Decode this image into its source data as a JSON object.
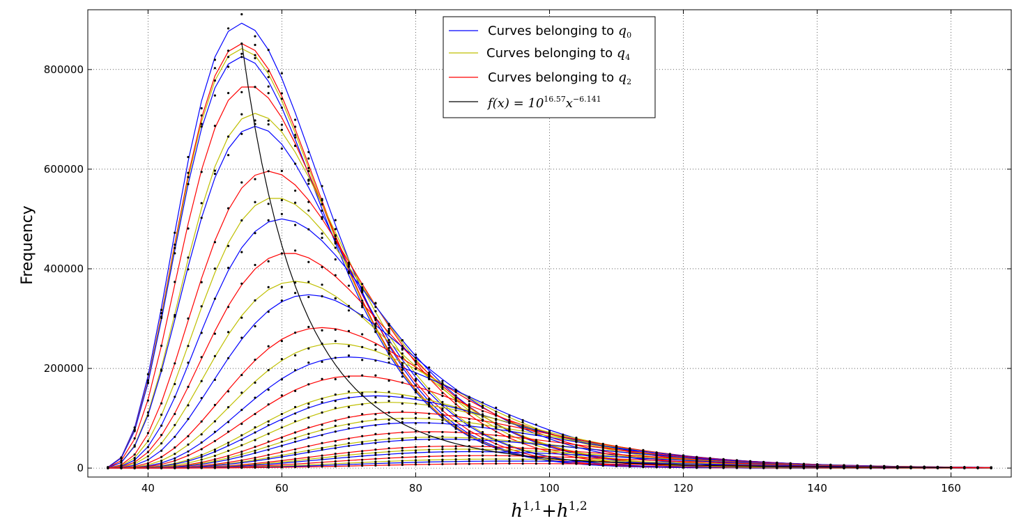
{
  "chart_data": {
    "type": "line",
    "title": "",
    "xlabel": {
      "base": "h",
      "sup1": "1,1",
      "plus": "+",
      "base2": "h",
      "sup2": "1,2"
    },
    "ylabel": "Frequency",
    "xlim": [
      31,
      169
    ],
    "ylim": [
      -18000,
      920000
    ],
    "xticks": [
      40,
      60,
      80,
      100,
      120,
      140,
      160
    ],
    "yticks": [
      0,
      200000,
      400000,
      600000,
      800000
    ],
    "grid": true,
    "legend_position": "top-center",
    "legend": [
      {
        "label": "Curves belonging to ",
        "math": "q",
        "sub": "0",
        "color": "#0000ff"
      },
      {
        "label": "Curves belonging to ",
        "math": "q",
        "sub": "4",
        "color": "#bfbf00"
      },
      {
        "label": "Curves belonging to ",
        "math": "q",
        "sub": "2",
        "color": "#ff0000"
      },
      {
        "label": "",
        "math": "f(x) = 10",
        "sup": "16.57",
        "math2": "x",
        "sup2": "−6.141",
        "color": "#000000"
      }
    ],
    "colors": {
      "q0": "#0000ff",
      "q4": "#bfbf00",
      "q2": "#ff0000",
      "fit": "#000000",
      "points": "#000000"
    },
    "fit_function": {
      "coefficient_log10": 16.57,
      "exponent": -6.141,
      "x_range": [
        54,
        160
      ]
    },
    "series_x_range": [
      34,
      166
    ],
    "curve_family": {
      "description": "peaked frequency curves grouped by q-type",
      "curves": [
        {
          "group": "q0",
          "peak_x": 54,
          "peak_y": 893000
        },
        {
          "group": "q2",
          "peak_x": 54,
          "peak_y": 852000
        },
        {
          "group": "q4",
          "peak_x": 54,
          "peak_y": 842000
        },
        {
          "group": "q0",
          "peak_x": 54,
          "peak_y": 826000
        },
        {
          "group": "q2",
          "peak_x": 55,
          "peak_y": 768000
        },
        {
          "group": "q4",
          "peak_x": 56,
          "peak_y": 712000
        },
        {
          "group": "q0",
          "peak_x": 56,
          "peak_y": 686000
        },
        {
          "group": "q2",
          "peak_x": 58,
          "peak_y": 596000
        },
        {
          "group": "q4",
          "peak_x": 59,
          "peak_y": 543000
        },
        {
          "group": "q0",
          "peak_x": 60,
          "peak_y": 500000
        },
        {
          "group": "q2",
          "peak_x": 61,
          "peak_y": 432000
        },
        {
          "group": "q4",
          "peak_x": 62,
          "peak_y": 375000
        },
        {
          "group": "q0",
          "peak_x": 64,
          "peak_y": 348000
        },
        {
          "group": "q2",
          "peak_x": 66,
          "peak_y": 282000
        },
        {
          "group": "q4",
          "peak_x": 68,
          "peak_y": 250000
        },
        {
          "group": "q0",
          "peak_x": 70,
          "peak_y": 223000
        },
        {
          "group": "q2",
          "peak_x": 71,
          "peak_y": 185000
        },
        {
          "group": "q4",
          "peak_x": 73,
          "peak_y": 153000
        },
        {
          "group": "q0",
          "peak_x": 74,
          "peak_y": 145000
        },
        {
          "group": "q4",
          "peak_x": 76,
          "peak_y": 132000
        },
        {
          "group": "q2",
          "peak_x": 78,
          "peak_y": 112000
        },
        {
          "group": "q4",
          "peak_x": 79,
          "peak_y": 100000
        },
        {
          "group": "q0",
          "peak_x": 80,
          "peak_y": 91000
        },
        {
          "group": "q2",
          "peak_x": 82,
          "peak_y": 73000
        },
        {
          "group": "q4",
          "peak_x": 83,
          "peak_y": 62000
        },
        {
          "group": "q0",
          "peak_x": 84,
          "peak_y": 58000
        },
        {
          "group": "q2",
          "peak_x": 86,
          "peak_y": 44000
        },
        {
          "group": "q4",
          "peak_x": 87,
          "peak_y": 38000
        },
        {
          "group": "q0",
          "peak_x": 88,
          "peak_y": 33000
        },
        {
          "group": "q2",
          "peak_x": 90,
          "peak_y": 25000
        },
        {
          "group": "q4",
          "peak_x": 92,
          "peak_y": 18000
        },
        {
          "group": "q0",
          "peak_x": 94,
          "peak_y": 14000
        },
        {
          "group": "q2",
          "peak_x": 96,
          "peak_y": 9000
        }
      ]
    }
  }
}
